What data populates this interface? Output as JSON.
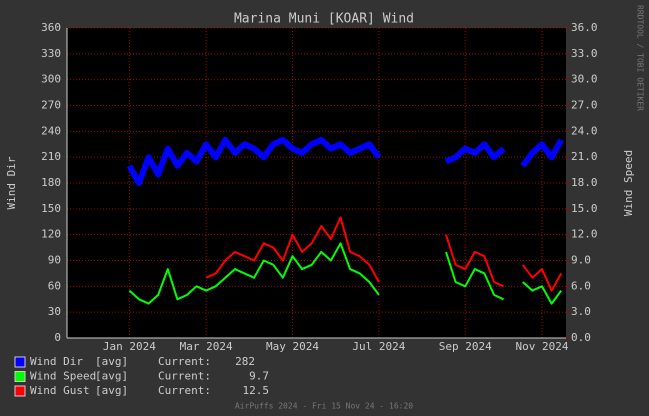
{
  "chart_data": {
    "type": "line",
    "title": "Marina Muni [KOAR] Wind",
    "y_label": "Wind Dir",
    "y2_label": "Wind Speed",
    "side_note": "RRDTOOL / TOBI OETIKER",
    "footer": "AirPuffs 2024 - Fri 15 Nov 24 - 16:20",
    "legend_stat": "[avg]",
    "legend_current": "Current:",
    "categories": [
      null,
      null,
      null,
      null,
      null,
      null,
      "Jan 2024",
      null,
      null,
      null,
      null,
      null,
      null,
      null,
      "Mar 2024",
      null,
      null,
      null,
      null,
      null,
      null,
      null,
      null,
      "May 2024",
      null,
      null,
      null,
      null,
      null,
      null,
      null,
      null,
      "Jul 2024",
      null,
      null,
      null,
      null,
      null,
      null,
      null,
      null,
      "Sep 2024",
      null,
      null,
      null,
      null,
      null,
      null,
      null,
      "Nov 2024",
      null,
      null
    ],
    "ylim": [
      0,
      360
    ],
    "yticks": [
      0,
      30,
      60,
      90,
      120,
      150,
      180,
      210,
      240,
      270,
      300,
      330,
      360
    ],
    "y2lim": [
      0,
      36
    ],
    "y2ticks": [
      {
        "value": 0,
        "label": "0.0"
      },
      {
        "value": 3,
        "label": "3.0"
      },
      {
        "value": 6,
        "label": "6.0"
      },
      {
        "value": 9,
        "label": "9.0"
      },
      {
        "value": 12,
        "label": "12.0"
      },
      {
        "value": 15,
        "label": "15.0"
      },
      {
        "value": 18,
        "label": "18.0"
      },
      {
        "value": 21,
        "label": "21.0"
      },
      {
        "value": 24,
        "label": "24.0"
      },
      {
        "value": 27,
        "label": "27.0"
      },
      {
        "value": 30,
        "label": "30.0"
      },
      {
        "value": 33,
        "label": "33.0"
      },
      {
        "value": 36,
        "label": "36.0"
      }
    ],
    "grid": true,
    "series": [
      {
        "name": "Wind Dir",
        "color": "#0000ff",
        "current": 282,
        "values": [
          null,
          null,
          null,
          null,
          null,
          null,
          200,
          180,
          210,
          190,
          220,
          200,
          215,
          205,
          225,
          210,
          230,
          215,
          225,
          220,
          210,
          225,
          230,
          220,
          215,
          225,
          230,
          220,
          225,
          215,
          220,
          225,
          210,
          null,
          null,
          null,
          null,
          null,
          null,
          205,
          210,
          220,
          215,
          225,
          210,
          220,
          null,
          200,
          215,
          225,
          210,
          230
        ]
      },
      {
        "name": "Wind Speed",
        "color": "#00ff00",
        "axis": "y2",
        "current": 9.7,
        "values": [
          null,
          null,
          null,
          null,
          null,
          null,
          5.5,
          4.5,
          4.0,
          5.0,
          8.0,
          4.5,
          5.0,
          6.0,
          5.5,
          6.0,
          7.0,
          8.0,
          7.5,
          7.0,
          9.0,
          8.5,
          7.0,
          9.5,
          8.0,
          8.5,
          10.0,
          9.0,
          11.0,
          8.0,
          7.5,
          6.5,
          5.0,
          null,
          null,
          null,
          null,
          null,
          null,
          10.0,
          6.5,
          6.0,
          8.0,
          7.5,
          5.0,
          4.5,
          null,
          6.5,
          5.5,
          6.0,
          4.0,
          5.5
        ]
      },
      {
        "name": "Wind Gust",
        "color": "#ff0000",
        "axis": "y2",
        "current": 12.5,
        "values": [
          null,
          null,
          null,
          null,
          null,
          null,
          null,
          null,
          null,
          null,
          null,
          null,
          null,
          null,
          7.0,
          7.5,
          9.0,
          10.0,
          9.5,
          9.0,
          11.0,
          10.5,
          9.0,
          12.0,
          10.0,
          11.0,
          13.0,
          11.5,
          14.0,
          10.0,
          9.5,
          8.5,
          6.5,
          null,
          null,
          null,
          null,
          null,
          null,
          12.0,
          8.5,
          8.0,
          10.0,
          9.5,
          6.5,
          6.0,
          null,
          8.5,
          7.0,
          8.0,
          5.5,
          7.5
        ]
      }
    ]
  }
}
